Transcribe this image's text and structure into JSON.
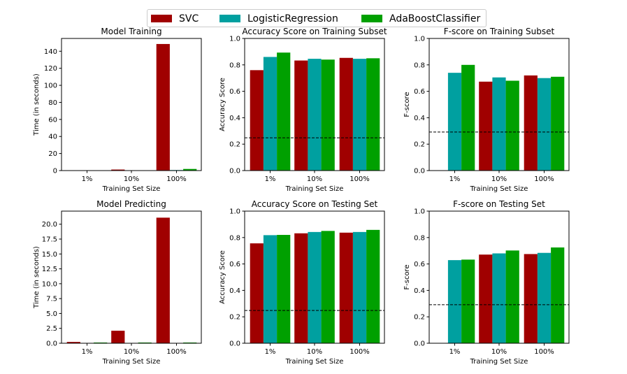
{
  "legend": {
    "placement": "top-center",
    "items": [
      {
        "label": "SVC",
        "color": "#a00000"
      },
      {
        "label": "LogisticRegression",
        "color": "#00a0a0"
      },
      {
        "label": "AdaBoostClassifier",
        "color": "#00a000"
      }
    ]
  },
  "chart_data": [
    {
      "type": "bar",
      "title": "Model Training",
      "xlabel": "Training Set Size",
      "ylabel": "Time (in seconds)",
      "categories": [
        "1%",
        "10%",
        "100%"
      ],
      "ylim": [
        0,
        155
      ],
      "yticks": [
        "0",
        "20",
        "40",
        "60",
        "80",
        "100",
        "120",
        "140"
      ],
      "series": [
        {
          "name": "SVC",
          "values": [
            0.02,
            1.2,
            148.5
          ]
        },
        {
          "name": "LogisticRegression",
          "values": [
            0.005,
            0.05,
            0.6
          ]
        },
        {
          "name": "AdaBoostClassifier",
          "values": [
            0.15,
            0.3,
            1.9
          ]
        }
      ],
      "baseline": null
    },
    {
      "type": "bar",
      "title": "Accuracy Score on Training Subset",
      "xlabel": "Training Set Size",
      "ylabel": "Accuracy Score",
      "categories": [
        "1%",
        "10%",
        "100%"
      ],
      "ylim": [
        0,
        1.0
      ],
      "yticks": [
        "0.0",
        "0.2",
        "0.4",
        "0.6",
        "0.8",
        "1.0"
      ],
      "series": [
        {
          "name": "SVC",
          "values": [
            0.76,
            0.833,
            0.853
          ]
        },
        {
          "name": "LogisticRegression",
          "values": [
            0.86,
            0.846,
            0.846
          ]
        },
        {
          "name": "AdaBoostClassifier",
          "values": [
            0.893,
            0.84,
            0.85
          ]
        }
      ],
      "baseline": 0.2478
    },
    {
      "type": "bar",
      "title": "F-score on Training Subset",
      "xlabel": "Training Set Size",
      "ylabel": "F-score",
      "categories": [
        "1%",
        "10%",
        "100%"
      ],
      "ylim": [
        0,
        1.0
      ],
      "yticks": [
        "0.0",
        "0.2",
        "0.4",
        "0.6",
        "0.8",
        "1.0"
      ],
      "series": [
        {
          "name": "SVC",
          "values": [
            0.0,
            0.673,
            0.72
          ]
        },
        {
          "name": "LogisticRegression",
          "values": [
            0.74,
            0.705,
            0.7
          ]
        },
        {
          "name": "AdaBoostClassifier",
          "values": [
            0.8,
            0.68,
            0.71
          ]
        }
      ],
      "baseline": 0.2917
    },
    {
      "type": "bar",
      "title": "Model Predicting",
      "xlabel": "Training Set Size",
      "ylabel": "Time (in seconds)",
      "categories": [
        "1%",
        "10%",
        "100%"
      ],
      "ylim": [
        0,
        22.2
      ],
      "yticks": [
        "0.0",
        "2.5",
        "5.0",
        "7.5",
        "10.0",
        "12.5",
        "15.0",
        "17.5",
        "20.0"
      ],
      "series": [
        {
          "name": "SVC",
          "values": [
            0.22,
            2.1,
            21.1
          ]
        },
        {
          "name": "LogisticRegression",
          "values": [
            0.01,
            0.01,
            0.01
          ]
        },
        {
          "name": "AdaBoostClassifier",
          "values": [
            0.12,
            0.12,
            0.12
          ]
        }
      ],
      "baseline": null
    },
    {
      "type": "bar",
      "title": "Accuracy Score on Testing Set",
      "xlabel": "Training Set Size",
      "ylabel": "Accuracy Score",
      "categories": [
        "1%",
        "10%",
        "100%"
      ],
      "ylim": [
        0,
        1.0
      ],
      "yticks": [
        "0.0",
        "0.2",
        "0.4",
        "0.6",
        "0.8",
        "1.0"
      ],
      "series": [
        {
          "name": "SVC",
          "values": [
            0.756,
            0.832,
            0.837
          ]
        },
        {
          "name": "LogisticRegression",
          "values": [
            0.818,
            0.842,
            0.842
          ]
        },
        {
          "name": "AdaBoostClassifier",
          "values": [
            0.82,
            0.85,
            0.858
          ]
        }
      ],
      "baseline": 0.2478
    },
    {
      "type": "bar",
      "title": "F-score on Testing Set",
      "xlabel": "Training Set Size",
      "ylabel": "F-score",
      "categories": [
        "1%",
        "10%",
        "100%"
      ],
      "ylim": [
        0,
        1.0
      ],
      "yticks": [
        "0.0",
        "0.2",
        "0.4",
        "0.6",
        "0.8",
        "1.0"
      ],
      "series": [
        {
          "name": "SVC",
          "values": [
            0.0,
            0.671,
            0.675
          ]
        },
        {
          "name": "LogisticRegression",
          "values": [
            0.629,
            0.68,
            0.684
          ]
        },
        {
          "name": "AdaBoostClassifier",
          "values": [
            0.633,
            0.702,
            0.725
          ]
        }
      ],
      "baseline": 0.2917
    }
  ]
}
